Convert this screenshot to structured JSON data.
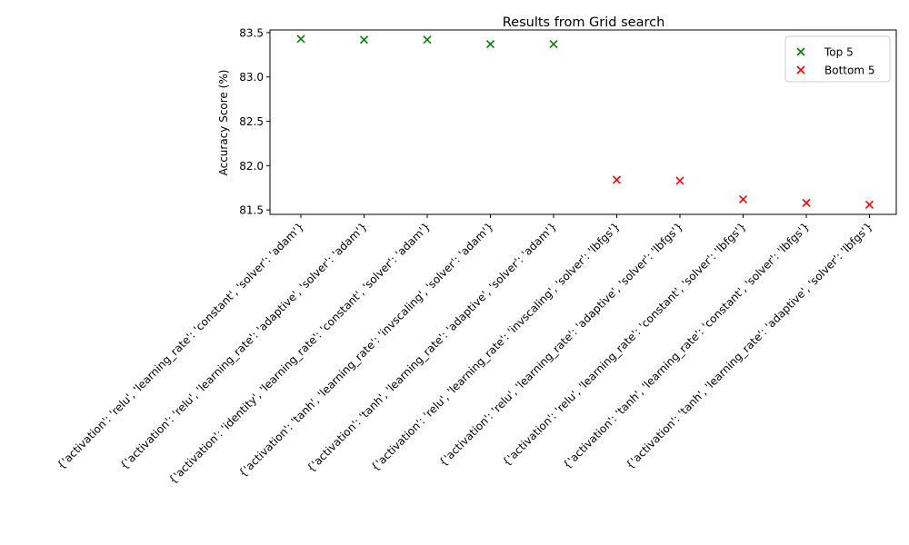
{
  "chart_data": {
    "type": "scatter",
    "title": "Results from Grid search",
    "xlabel": "",
    "ylabel": "Accuracy Score (%)",
    "ylim": [
      81.45,
      83.53
    ],
    "yticks": [
      "81.5",
      "82.0",
      "82.5",
      "83.0",
      "83.5"
    ],
    "grid": false,
    "legend_position": "top-right",
    "categories": [
      "{'activation': 'relu', 'learning_rate': 'constant', 'solver': 'adam'}",
      "{'activation': 'relu', 'learning_rate': 'adaptive', 'solver': 'adam'}",
      "{'activation': 'identity', 'learning_rate': 'constant', 'solver': 'adam'}",
      "{'activation': 'tanh', 'learning_rate': 'invscaling', 'solver': 'adam'}",
      "{'activation': 'tanh', 'learning_rate': 'adaptive', 'solver': 'adam'}",
      "{'activation': 'relu', 'learning_rate': 'invscaling', 'solver': 'lbfgs'}",
      "{'activation': 'relu', 'learning_rate': 'adaptive', 'solver': 'lbfgs'}",
      "{'activation': 'relu', 'learning_rate': 'constant', 'solver': 'lbfgs'}",
      "{'activation': 'tanh', 'learning_rate': 'constant', 'solver': 'lbfgs'}",
      "{'activation': 'tanh', 'learning_rate': 'adaptive', 'solver': 'lbfgs'}"
    ],
    "series": [
      {
        "name": "Top 5",
        "color": "#008000",
        "marker": "x",
        "x_index": [
          0,
          1,
          2,
          3,
          4
        ],
        "values": [
          83.43,
          83.42,
          83.42,
          83.37,
          83.37
        ]
      },
      {
        "name": "Bottom 5",
        "color": "#ff0000",
        "marker": "x",
        "x_index": [
          5,
          6,
          7,
          8,
          9
        ],
        "values": [
          81.84,
          81.83,
          81.62,
          81.58,
          81.56
        ]
      }
    ]
  }
}
